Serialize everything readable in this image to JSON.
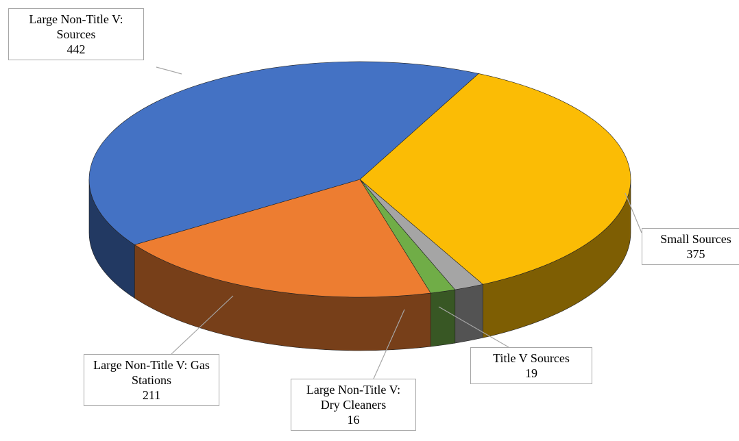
{
  "chart_data": {
    "type": "pie3d",
    "categories": [
      "Small Sources",
      "Title V Sources",
      "Large Non-Title V: Dry Cleaners",
      "Large Non-Title V: Gas Stations",
      "Large Non-Title V: Sources"
    ],
    "values": [
      375,
      19,
      16,
      211,
      442
    ],
    "colors": [
      "#fbbc05",
      "#a5a5a5",
      "#70ad47",
      "#ed7d31",
      "#4472c4"
    ]
  }
}
